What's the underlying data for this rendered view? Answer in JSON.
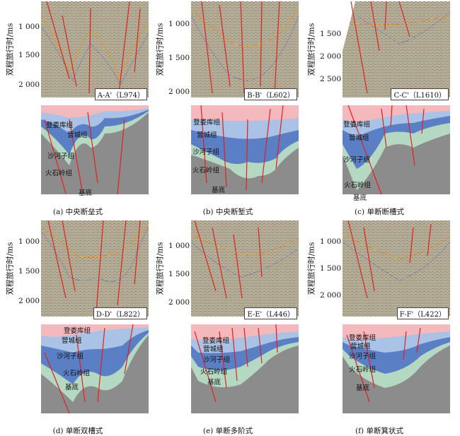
{
  "axis_label": "双程旅行时/ms",
  "panels": [
    {
      "id": "a",
      "line_label": "A-A'（L974）",
      "caption": "(a) 中央断垒式",
      "ticks": [
        "1 000",
        "1 500",
        "2 000"
      ],
      "layers": [
        "登娄库组",
        "营城组",
        "沙河子组",
        "火石岭组",
        "基底"
      ]
    },
    {
      "id": "b",
      "line_label": "B-B'（L602）",
      "caption": "(b) 中央断堑式",
      "ticks": [
        "1 000",
        "1 500",
        "2 000"
      ],
      "layers": [
        "登娄库组",
        "营城组",
        "沙河子组",
        "火石岭组",
        "基底"
      ]
    },
    {
      "id": "c",
      "line_label": "C-C'（L1610）",
      "caption": "(c) 单断断槽式",
      "ticks": [
        "1 500",
        "2 000",
        "2 500"
      ],
      "layers": [
        "登娄库组",
        "营城组",
        "沙河子组",
        "火石岭组",
        "基底"
      ]
    },
    {
      "id": "d",
      "line_label": "D-D'（L822）",
      "caption": "(d) 单断双槽式",
      "ticks": [
        "1 000",
        "1 500",
        "2 000"
      ],
      "layers": [
        "登娄库组",
        "营城组",
        "沙河子组",
        "火石岭组",
        "基底"
      ]
    },
    {
      "id": "e",
      "line_label": "E-E'（L446）",
      "caption": "(e) 单断多阶式",
      "ticks": [
        "1 000",
        "1 500",
        "2 000"
      ],
      "layers": [
        "登娄库组",
        "营城组",
        "沙河子组",
        "火石岭组",
        "基底"
      ]
    },
    {
      "id": "f",
      "line_label": "F-F'（L422）",
      "caption": "(f) 单断箕状式",
      "ticks": [
        "1 000",
        "1 500",
        "2 000"
      ],
      "layers": [
        "登娄库组",
        "营城组",
        "沙河子组",
        "火石岭组",
        "基底"
      ]
    }
  ],
  "colors": {
    "denglouku": "#f3b9bd",
    "yingcheng": "#a9c2e6",
    "shahezi": "#5a7fc4",
    "huoshiling": "#b5d8c2",
    "basement": "#8c8c8c",
    "fault": "#e0201c",
    "horizon": "#d89a3a",
    "seismic_bg": "#c9c6ae"
  }
}
